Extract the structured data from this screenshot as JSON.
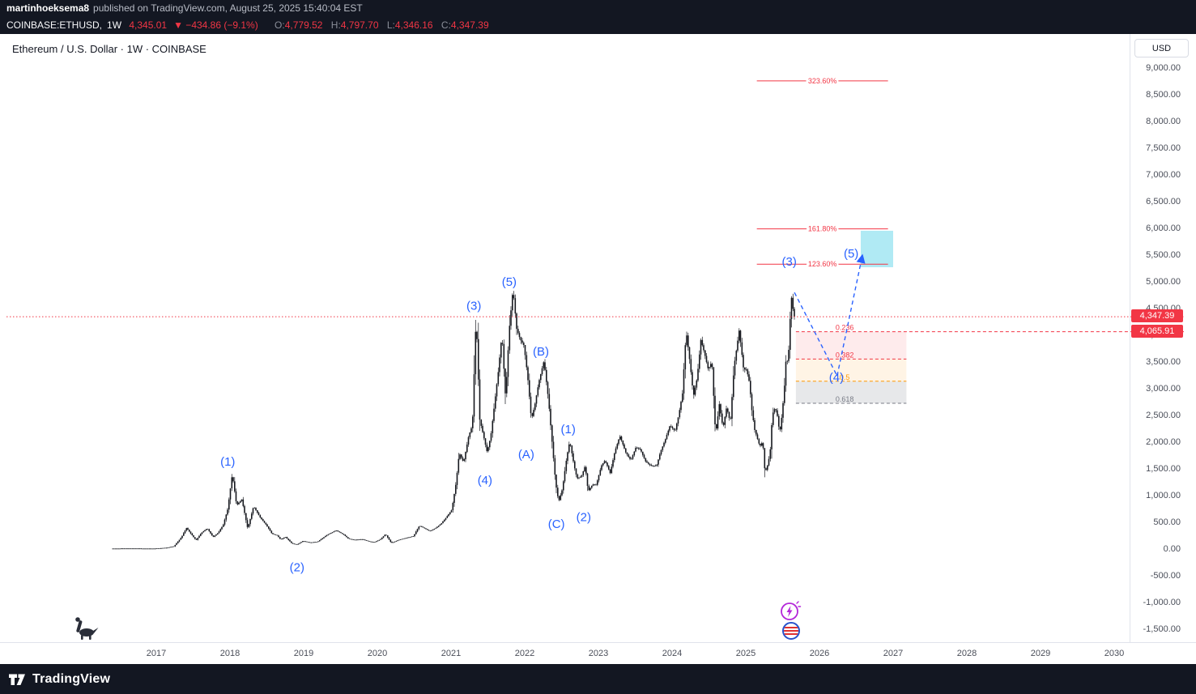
{
  "publish_bar": {
    "username": "martinhoeksema8",
    "suffix": "published on TradingView.com, August 25, 2025 15:40:04 EST"
  },
  "symbol_bar": {
    "symbol": "COINBASE:ETHUSD,",
    "interval": "1W",
    "last_price": "4,345.01",
    "change": "▼ −434.86 (−9.1%)",
    "ohlc": [
      {
        "label": "O:",
        "value": "4,779.52"
      },
      {
        "label": "H:",
        "value": "4,797.70"
      },
      {
        "label": "L:",
        "value": "4,346.16"
      },
      {
        "label": "C:",
        "value": "4,347.39"
      }
    ]
  },
  "chart_header": {
    "title": "Ethereum / U.S. Dollar · 1W · COINBASE"
  },
  "price_axis": {
    "currency": "USD",
    "badges": [
      {
        "text": "4,347.39",
        "price": 4347.39,
        "color": "#f23645"
      },
      {
        "text": "4,065.91",
        "price": 4065.91,
        "color": "#f23645"
      }
    ]
  },
  "footer": {
    "brand": "TradingView"
  },
  "chart_data": {
    "type": "candlestick",
    "title": "Ethereum / U.S. Dollar · 1W · COINBASE",
    "symbol": "COINBASE:ETHUSD",
    "timeframe": "1W",
    "last_bar": {
      "open": 4779.52,
      "high": 4797.7,
      "low": 4346.16,
      "close": 4347.39
    },
    "xlim": [
      2014.88,
      2030.21
    ],
    "ylim": [
      -2152,
      9590
    ],
    "x_ticks": [
      2017,
      2018,
      2019,
      2020,
      2021,
      2022,
      2023,
      2024,
      2025,
      2026,
      2027,
      2028,
      2029,
      2030
    ],
    "y_ticks": [
      9000,
      8500,
      8000,
      7500,
      7000,
      6500,
      6000,
      5500,
      5000,
      4500,
      4000,
      3500,
      3000,
      2500,
      2000,
      1500,
      1000,
      500,
      0,
      -500,
      -1000,
      -1500
    ],
    "candle_color": "#16181e",
    "wave_color": "#2962ff",
    "current_price_line": {
      "price": 4347.39,
      "color": "#f23645"
    },
    "wave_labels": [
      {
        "text": "(1)",
        "t": 2017.97,
        "price": 1640
      },
      {
        "text": "(2)",
        "t": 2018.91,
        "price": -340
      },
      {
        "text": "(3)",
        "t": 2021.31,
        "price": 4550
      },
      {
        "text": "(4)",
        "t": 2021.46,
        "price": 1290
      },
      {
        "text": "(5)",
        "t": 2021.79,
        "price": 5000
      },
      {
        "text": "(A)",
        "t": 2022.02,
        "price": 1770
      },
      {
        "text": "(B)",
        "t": 2022.22,
        "price": 3700
      },
      {
        "text": "(C)",
        "t": 2022.43,
        "price": 470
      },
      {
        "text": "(1)",
        "t": 2022.59,
        "price": 2240
      },
      {
        "text": "(2)",
        "t": 2022.8,
        "price": 600
      },
      {
        "text": "(3)",
        "t": 2025.59,
        "price": 5380
      },
      {
        "text": "(4)",
        "t": 2026.23,
        "price": 3210
      },
      {
        "text": "(5)",
        "t": 2026.43,
        "price": 5530
      }
    ],
    "fib_extension": {
      "color": "#f23645",
      "x_range": [
        2025.15,
        2026.93
      ],
      "levels": [
        {
          "label": "123.60%",
          "price": 5330
        },
        {
          "label": "161.80%",
          "price": 5990
        },
        {
          "label": "323.60%",
          "price": 8760
        }
      ]
    },
    "fib_retracement": {
      "x_range": [
        2025.68,
        2027.18
      ],
      "levels": [
        {
          "label": "0.236",
          "price": 4065.91,
          "color": "#f23645",
          "extend_right": true
        },
        {
          "label": "0.382",
          "price": 3554,
          "color": "#f23645"
        },
        {
          "label": "0.5",
          "price": 3140,
          "color": "#ff9800"
        },
        {
          "label": "0.618",
          "price": 2727,
          "color": "#787b86"
        }
      ],
      "bands": [
        {
          "from_price": 4065.91,
          "to_price": 3554,
          "color": "rgba(242,54,69,0.10)"
        },
        {
          "from_price": 3554,
          "to_price": 3140,
          "color": "rgba(255,152,0,0.10)"
        },
        {
          "from_price": 3140,
          "to_price": 2727,
          "color": "rgba(134,139,148,0.20)"
        }
      ]
    },
    "target_box": {
      "x_range": [
        2026.56,
        2027.0
      ],
      "price_range": [
        5273,
        5955
      ],
      "color": "#7bdcec",
      "opacity": 0.6
    },
    "projection_arrows": {
      "color": "#2962ff",
      "points": [
        [
          2025.66,
          4800
        ],
        [
          2026.24,
          3240
        ],
        [
          2026.58,
          5480
        ]
      ]
    },
    "stickers": [
      {
        "icon": "dinosaur"
      },
      {
        "icon": "lightning-circle"
      },
      {
        "icon": "striped-globe"
      }
    ],
    "price_path_keypoints": [
      [
        2016.4,
        9
      ],
      [
        2016.7,
        11
      ],
      [
        2016.95,
        8
      ],
      [
        2017.0,
        10
      ],
      [
        2017.15,
        25
      ],
      [
        2017.25,
        52
      ],
      [
        2017.35,
        220
      ],
      [
        2017.42,
        395
      ],
      [
        2017.5,
        250
      ],
      [
        2017.55,
        165
      ],
      [
        2017.62,
        300
      ],
      [
        2017.7,
        388
      ],
      [
        2017.78,
        225
      ],
      [
        2017.85,
        305
      ],
      [
        2017.92,
        460
      ],
      [
        2017.98,
        755
      ],
      [
        2018.04,
        1400
      ],
      [
        2018.1,
        820
      ],
      [
        2018.17,
        930
      ],
      [
        2018.25,
        385
      ],
      [
        2018.33,
        800
      ],
      [
        2018.42,
        590
      ],
      [
        2018.5,
        455
      ],
      [
        2018.58,
        285
      ],
      [
        2018.65,
        255
      ],
      [
        2018.7,
        175
      ],
      [
        2018.76,
        230
      ],
      [
        2018.85,
        105
      ],
      [
        2018.92,
        85
      ],
      [
        2019.0,
        150
      ],
      [
        2019.1,
        122
      ],
      [
        2019.2,
        138
      ],
      [
        2019.33,
        268
      ],
      [
        2019.45,
        350
      ],
      [
        2019.55,
        272
      ],
      [
        2019.62,
        192
      ],
      [
        2019.7,
        172
      ],
      [
        2019.8,
        185
      ],
      [
        2019.9,
        142
      ],
      [
        2019.97,
        128
      ],
      [
        2020.05,
        182
      ],
      [
        2020.12,
        278
      ],
      [
        2020.2,
        112
      ],
      [
        2020.3,
        172
      ],
      [
        2020.4,
        208
      ],
      [
        2020.5,
        242
      ],
      [
        2020.58,
        438
      ],
      [
        2020.65,
        388
      ],
      [
        2020.72,
        335
      ],
      [
        2020.8,
        392
      ],
      [
        2020.88,
        482
      ],
      [
        2020.95,
        602
      ],
      [
        2021.02,
        735
      ],
      [
        2021.08,
        1260
      ],
      [
        2021.12,
        1800
      ],
      [
        2021.18,
        1620
      ],
      [
        2021.25,
        2120
      ],
      [
        2021.3,
        2320
      ],
      [
        2021.35,
        4380
      ],
      [
        2021.4,
        2420
      ],
      [
        2021.45,
        2120
      ],
      [
        2021.5,
        1810
      ],
      [
        2021.55,
        2120
      ],
      [
        2021.6,
        2720
      ],
      [
        2021.65,
        3310
      ],
      [
        2021.7,
        4020
      ],
      [
        2021.75,
        2820
      ],
      [
        2021.8,
        4120
      ],
      [
        2021.85,
        4868
      ],
      [
        2021.9,
        4120
      ],
      [
        2021.95,
        3920
      ],
      [
        2022.0,
        3810
      ],
      [
        2022.05,
        3220
      ],
      [
        2022.1,
        2420
      ],
      [
        2022.15,
        2720
      ],
      [
        2022.2,
        3120
      ],
      [
        2022.27,
        3520
      ],
      [
        2022.33,
        2820
      ],
      [
        2022.38,
        2020
      ],
      [
        2022.43,
        1220
      ],
      [
        2022.47,
        885
      ],
      [
        2022.52,
        1120
      ],
      [
        2022.58,
        1720
      ],
      [
        2022.62,
        2020
      ],
      [
        2022.68,
        1560
      ],
      [
        2022.72,
        1320
      ],
      [
        2022.78,
        1360
      ],
      [
        2022.83,
        1560
      ],
      [
        2022.87,
        1080
      ],
      [
        2022.93,
        1210
      ],
      [
        2022.98,
        1200
      ],
      [
        2023.05,
        1560
      ],
      [
        2023.1,
        1660
      ],
      [
        2023.17,
        1420
      ],
      [
        2023.23,
        1810
      ],
      [
        2023.3,
        2120
      ],
      [
        2023.38,
        1810
      ],
      [
        2023.45,
        1660
      ],
      [
        2023.52,
        1910
      ],
      [
        2023.58,
        1860
      ],
      [
        2023.65,
        1640
      ],
      [
        2023.72,
        1560
      ],
      [
        2023.8,
        1560
      ],
      [
        2023.85,
        1810
      ],
      [
        2023.92,
        2060
      ],
      [
        2023.98,
        2310
      ],
      [
        2024.05,
        2210
      ],
      [
        2024.1,
        2510
      ],
      [
        2024.15,
        2910
      ],
      [
        2024.2,
        4085
      ],
      [
        2024.25,
        3510
      ],
      [
        2024.3,
        2860
      ],
      [
        2024.35,
        3210
      ],
      [
        2024.4,
        3910
      ],
      [
        2024.45,
        3660
      ],
      [
        2024.5,
        3360
      ],
      [
        2024.55,
        3510
      ],
      [
        2024.6,
        2120
      ],
      [
        2024.65,
        2710
      ],
      [
        2024.7,
        2260
      ],
      [
        2024.75,
        2660
      ],
      [
        2024.8,
        2360
      ],
      [
        2024.85,
        3410
      ],
      [
        2024.92,
        4095
      ],
      [
        2024.98,
        3360
      ],
      [
        2025.02,
        3360
      ],
      [
        2025.06,
        3110
      ],
      [
        2025.09,
        2620
      ],
      [
        2025.13,
        2230
      ],
      [
        2025.16,
        2100
      ],
      [
        2025.2,
        1920
      ],
      [
        2025.24,
        2010
      ],
      [
        2025.27,
        1420
      ],
      [
        2025.31,
        1590
      ],
      [
        2025.34,
        1810
      ],
      [
        2025.37,
        2520
      ],
      [
        2025.41,
        2650
      ],
      [
        2025.44,
        2480
      ],
      [
        2025.47,
        2160
      ],
      [
        2025.5,
        2500
      ],
      [
        2025.53,
        2950
      ],
      [
        2025.56,
        3650
      ],
      [
        2025.58,
        3450
      ],
      [
        2025.6,
        3900
      ],
      [
        2025.62,
        4600
      ],
      [
        2025.64,
        4788
      ],
      [
        2025.655,
        4347
      ]
    ]
  }
}
